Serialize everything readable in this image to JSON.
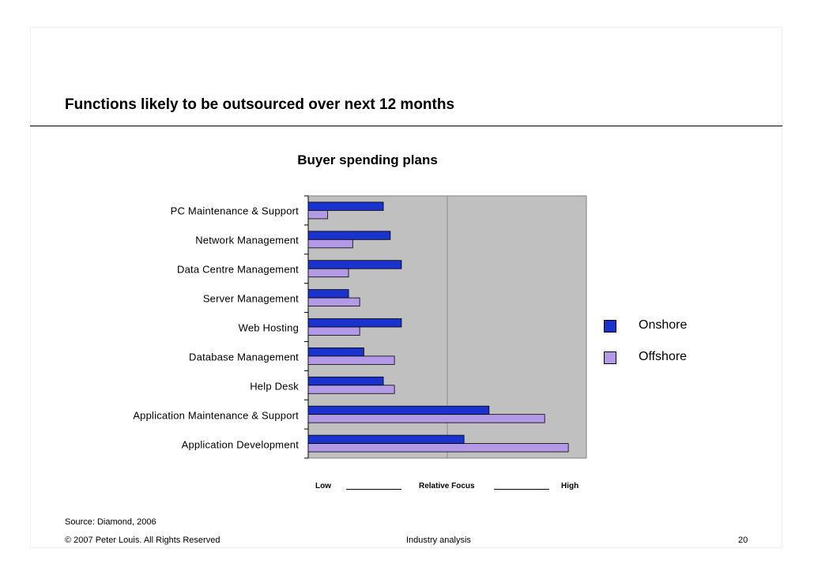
{
  "slide": {
    "title": "Functions likely to be outsourced over next 12 months",
    "source": "Source:   Diamond, 2006",
    "copyright": "© 2007 Peter Louis. All Rights Reserved",
    "section": "Industry analysis",
    "page_number": "20"
  },
  "chart_data": {
    "type": "bar",
    "orientation": "horizontal",
    "title": "Buyer spending plans",
    "categories": [
      "PC Maintenance & Support",
      "Network Management",
      "Data Centre Management",
      "Server Management",
      "Web Hosting",
      "Database Management",
      "Help Desk",
      "Application Maintenance & Support",
      "Application Development"
    ],
    "series": [
      {
        "name": "Onshore",
        "color": "#1a33cc",
        "values": [
          27,
          29.5,
          33.5,
          14.5,
          33.5,
          20,
          27,
          65,
          56
        ]
      },
      {
        "name": "Offshore",
        "color": "#b39ae6",
        "values": [
          7,
          16,
          14.5,
          18.5,
          18.5,
          31,
          31,
          85,
          93.5
        ]
      }
    ],
    "xlim": [
      0,
      100
    ],
    "axis_low_label": "Low",
    "axis_mid_label": "Relative Focus",
    "axis_high_label": "High",
    "plot_background": "#c0c0c0",
    "gridline_at": 50,
    "legend_position": "right"
  }
}
